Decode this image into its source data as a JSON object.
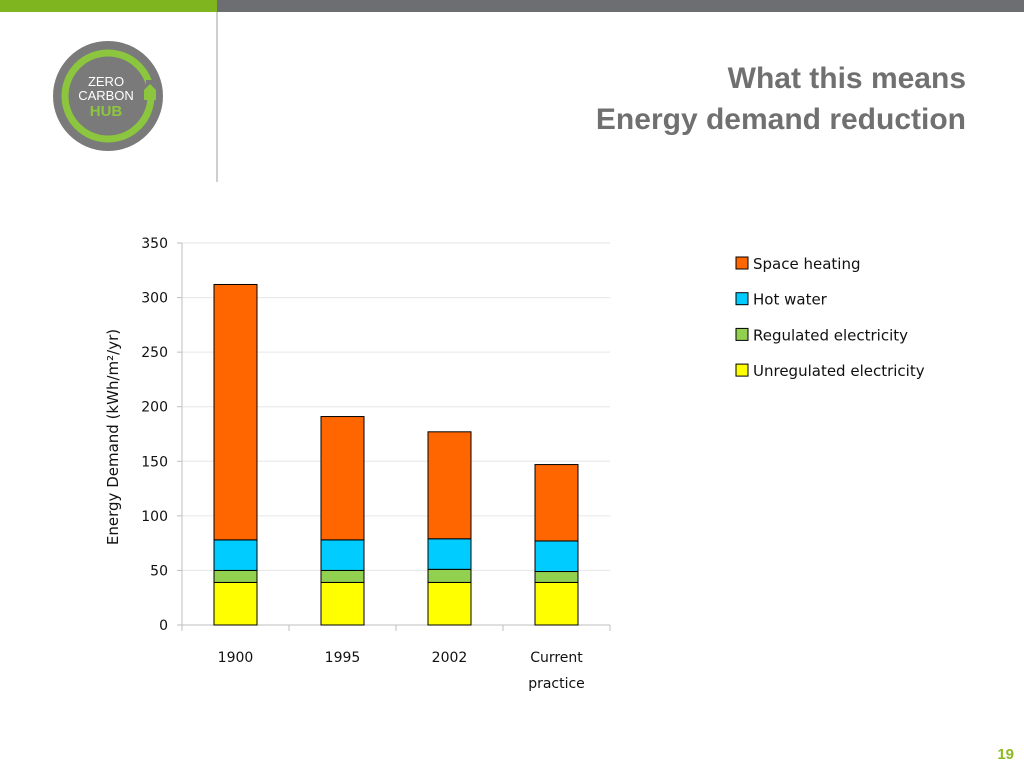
{
  "theme": {
    "accent_green": "#7fb51f",
    "bar_grey": "#6d6e71",
    "title_grey": "#707070",
    "page_number_color": "#8cba23"
  },
  "logo": {
    "icon": "zero-carbon-hub-logo",
    "text_line1": "ZERO",
    "text_line2": "CARBON",
    "text_line3": "HUB"
  },
  "header": {
    "title_line1": "What this means",
    "title_line2": "Energy demand reduction"
  },
  "page_number": "19",
  "chart_data": {
    "type": "bar",
    "stacked": true,
    "categories": [
      "1900",
      "1995",
      "2002",
      "Current practice"
    ],
    "category_lines": [
      [
        "1900"
      ],
      [
        "1995"
      ],
      [
        "2002"
      ],
      [
        "Current",
        "practice"
      ]
    ],
    "series": [
      {
        "name": "Unregulated electricity",
        "color": "#ffff00",
        "values": [
          39,
          39,
          39,
          39
        ]
      },
      {
        "name": "Regulated electricity",
        "color": "#92d050",
        "values": [
          11,
          11,
          12,
          10
        ]
      },
      {
        "name": "Hot water",
        "color": "#00ccff",
        "values": [
          28,
          28,
          28,
          28
        ]
      },
      {
        "name": "Space heating",
        "color": "#ff6600",
        "values": [
          234,
          113,
          98,
          70
        ]
      }
    ],
    "legend_order": [
      "Space heating",
      "Hot water",
      "Regulated electricity",
      "Unregulated electricity"
    ],
    "title": "",
    "xlabel": "",
    "ylabel": "Energy Demand (kWh/m²/yr)",
    "ylim": [
      0,
      350
    ],
    "yticks": [
      0,
      50,
      100,
      150,
      200,
      250,
      300,
      350
    ],
    "grid": true,
    "legend_position": "right"
  }
}
